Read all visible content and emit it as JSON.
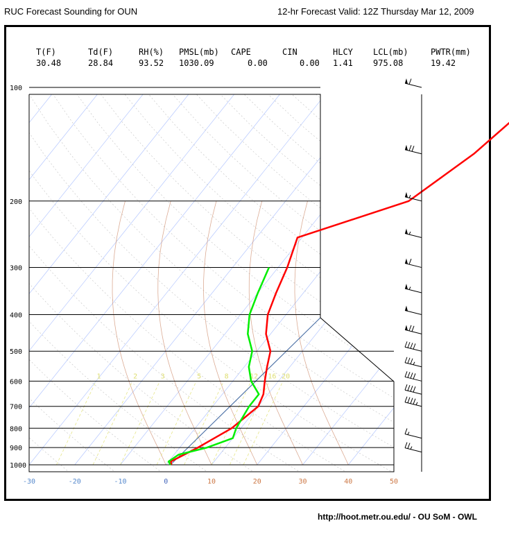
{
  "header": {
    "title": "RUC Forecast Sounding for OUN",
    "valid": "12-hr Forecast Valid: 12Z Thursday Mar 12, 2009"
  },
  "stats": [
    {
      "label": "T(F)",
      "value": "30.48"
    },
    {
      "label": "Td(F)",
      "value": "28.84"
    },
    {
      "label": "RH(%)",
      "value": "93.52"
    },
    {
      "label": "PMSL(mb)",
      "value": "1030.09"
    },
    {
      "label": "CAPE",
      "value": "0.00"
    },
    {
      "label": "CIN",
      "value": "0.00"
    },
    {
      "label": "HLCY",
      "value": "1.41"
    },
    {
      "label": "LCL(mb)",
      "value": "975.08"
    },
    {
      "label": "PWTR(mm)",
      "value": "19.42"
    }
  ],
  "footer": "http://hoot.metr.ou.edu/ - OU SoM - OWL",
  "colors": {
    "temperature": "#ff0000",
    "dewpoint": "#00ee00",
    "isotherm": "#7f9fff",
    "dry_adiabat": "#c0c0c0",
    "moist_adiabat": "#cc8866",
    "mixing_ratio": "#e6e68a",
    "parcel": "#4a6fa5"
  },
  "chart_data": {
    "type": "line",
    "title": "",
    "xlabel": "",
    "ylabel": "",
    "y_scale": "log",
    "xlim": [
      -30,
      50
    ],
    "ylim": [
      1000,
      100
    ],
    "pressure_ticks": [
      100,
      200,
      300,
      400,
      500,
      600,
      700,
      800,
      900,
      1000
    ],
    "temperature_ticks": [
      -30,
      -20,
      -10,
      0,
      10,
      20,
      30,
      40,
      50
    ],
    "mixing_ratio_labels": [
      "1",
      "2",
      "3",
      "5",
      "8",
      "12",
      "16",
      "20"
    ],
    "series": [
      {
        "pressure": [
          1000,
          980,
          900,
          800,
          700,
          650,
          600,
          550,
          500,
          450,
          400,
          350,
          300,
          250,
          200,
          150,
          100
        ],
        "values": [
          1.2,
          0.5,
          4,
          8,
          10,
          9,
          7,
          5,
          3,
          -1,
          -4,
          -6,
          -8,
          -11,
          7,
          13,
          18
        ]
      },
      {
        "pressure": [
          1000,
          980,
          940,
          900,
          850,
          800,
          700,
          650,
          600,
          550,
          500,
          450,
          400,
          350,
          300
        ],
        "values": [
          1,
          0,
          1,
          6,
          10,
          9,
          8,
          8,
          4,
          1,
          -1,
          -5,
          -8,
          -10,
          -12
        ]
      }
    ],
    "wind_barbs": [
      {
        "pressure": 100,
        "speed_kt": 60
      },
      {
        "pressure": 150,
        "speed_kt": 70
      },
      {
        "pressure": 200,
        "speed_kt": 55
      },
      {
        "pressure": 250,
        "speed_kt": 55
      },
      {
        "pressure": 300,
        "speed_kt": 60
      },
      {
        "pressure": 350,
        "speed_kt": 55
      },
      {
        "pressure": 400,
        "speed_kt": 50
      },
      {
        "pressure": 450,
        "speed_kt": 70
      },
      {
        "pressure": 500,
        "speed_kt": 40
      },
      {
        "pressure": 550,
        "speed_kt": 35
      },
      {
        "pressure": 600,
        "speed_kt": 40
      },
      {
        "pressure": 650,
        "speed_kt": 40
      },
      {
        "pressure": 700,
        "speed_kt": 45
      },
      {
        "pressure": 850,
        "speed_kt": 15
      },
      {
        "pressure": 925,
        "speed_kt": 25
      }
    ]
  }
}
